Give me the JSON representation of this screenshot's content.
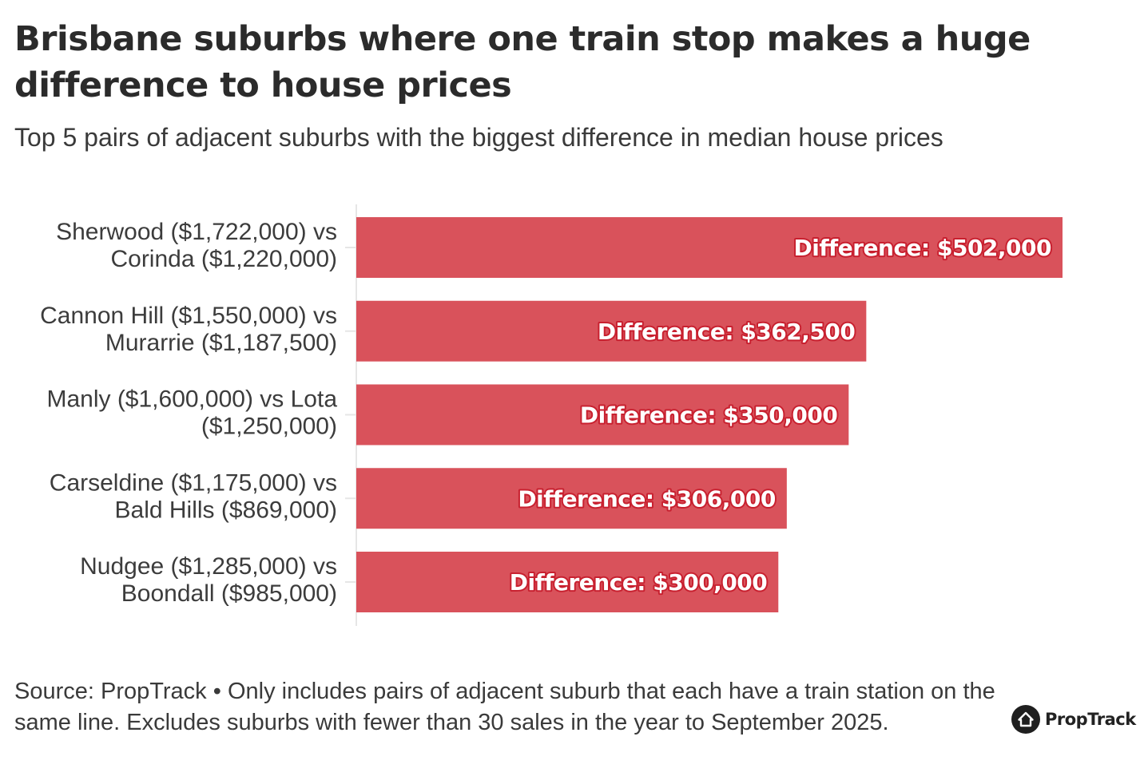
{
  "header": {
    "title": "Brisbane suburbs where one train stop makes a huge difference to house prices",
    "subtitle": "Top 5 pairs of adjacent suburbs with the biggest difference in median house prices"
  },
  "footer": {
    "source": "Source: PropTrack • Only includes pairs of adjacent suburb that each have a train station on the same line. Excludes suburbs with fewer than 30 sales in the year to September 2025.",
    "brand": "PropTrack",
    "brand_icon": "house-logo-icon"
  },
  "colors": {
    "bar": "#d9525b",
    "label_outline": "#c8202f",
    "axis": "#e6e6e6"
  },
  "chart_data": {
    "type": "bar",
    "orientation": "horizontal",
    "title": "Brisbane suburbs where one train stop makes a huge difference to house prices",
    "subtitle": "Top 5 pairs of adjacent suburbs with the biggest difference in median house prices",
    "categories": [
      [
        "Sherwood ($1,722,000) vs",
        "Corinda ($1,220,000)"
      ],
      [
        "Cannon Hill ($1,550,000) vs",
        "Murarrie ($1,187,500)"
      ],
      [
        "Manly ($1,600,000) vs Lota",
        "($1,250,000)"
      ],
      [
        "Carseldine ($1,175,000) vs",
        "Bald Hills ($869,000)"
      ],
      [
        "Nudgee ($1,285,000) vs",
        "Boondall ($985,000)"
      ]
    ],
    "values": [
      502000,
      362500,
      350000,
      306000,
      300000
    ],
    "data_labels": [
      "Difference: $502,000",
      "Difference: $362,500",
      "Difference: $350,000",
      "Difference: $306,000",
      "Difference: $300,000"
    ],
    "xlim": [
      0,
      502000
    ],
    "xlabel": "",
    "ylabel": "",
    "grid": false,
    "legend": "none"
  }
}
